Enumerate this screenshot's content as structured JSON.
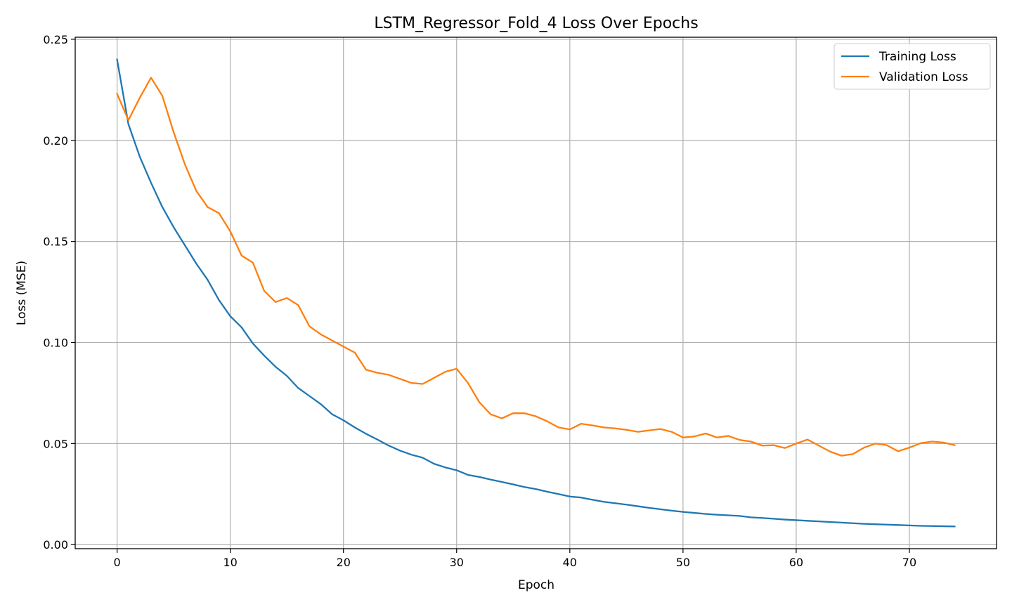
{
  "chart_data": {
    "type": "line",
    "title": "LSTM_Regressor_Fold_4 Loss Over Epochs",
    "xlabel": "Epoch",
    "ylabel": "Loss (MSE)",
    "xlim": [
      -3.7,
      77.7
    ],
    "ylim": [
      -0.002,
      0.251
    ],
    "xticks": [
      0,
      10,
      20,
      30,
      40,
      50,
      60,
      70
    ],
    "xtick_labels": [
      "0",
      "10",
      "20",
      "30",
      "40",
      "50",
      "60",
      "70"
    ],
    "yticks": [
      0.0,
      0.05,
      0.1,
      0.15,
      0.2,
      0.25
    ],
    "ytick_labels": [
      "0.00",
      "0.05",
      "0.10",
      "0.15",
      "0.20",
      "0.25"
    ],
    "grid": true,
    "legend_position": "top-right",
    "series": [
      {
        "name": "Training Loss",
        "color": "#1f77b4",
        "values": [
          0.24,
          0.208,
          0.192,
          0.179,
          0.167,
          0.157,
          0.148,
          0.139,
          0.131,
          0.121,
          0.113,
          0.1075,
          0.0995,
          0.0935,
          0.088,
          0.0835,
          0.0775,
          0.0735,
          0.0695,
          0.0645,
          0.0615,
          0.058,
          0.0548,
          0.052,
          0.049,
          0.0465,
          0.0445,
          0.043,
          0.04,
          0.0382,
          0.0368,
          0.0345,
          0.0335,
          0.0322,
          0.031,
          0.0298,
          0.0285,
          0.0275,
          0.0262,
          0.025,
          0.0238,
          0.0233,
          0.0222,
          0.0212,
          0.0205,
          0.0198,
          0.019,
          0.0182,
          0.0175,
          0.0168,
          0.0162,
          0.0157,
          0.0152,
          0.0148,
          0.0145,
          0.0142,
          0.0135,
          0.0132,
          0.0128,
          0.0124,
          0.0121,
          0.0118,
          0.0115,
          0.0112,
          0.0109,
          0.0106,
          0.0103,
          0.0101,
          0.0099,
          0.0097,
          0.0095,
          0.0093,
          0.0092,
          0.0091,
          0.009
        ]
      },
      {
        "name": "Validation Loss",
        "color": "#ff7f0e",
        "values": [
          0.223,
          0.21,
          0.221,
          0.231,
          0.222,
          0.204,
          0.188,
          0.175,
          0.167,
          0.164,
          0.155,
          0.143,
          0.1395,
          0.1255,
          0.12,
          0.122,
          0.1185,
          0.108,
          0.104,
          0.101,
          0.098,
          0.095,
          0.0865,
          0.085,
          0.084,
          0.082,
          0.08,
          0.0795,
          0.0825,
          0.0855,
          0.087,
          0.08,
          0.0705,
          0.0645,
          0.0625,
          0.065,
          0.065,
          0.0635,
          0.061,
          0.058,
          0.057,
          0.0598,
          0.059,
          0.058,
          0.0575,
          0.0568,
          0.0558,
          0.0565,
          0.0572,
          0.0558,
          0.053,
          0.0535,
          0.055,
          0.053,
          0.0538,
          0.0518,
          0.051,
          0.049,
          0.0492,
          0.0478,
          0.05,
          0.052,
          0.049,
          0.046,
          0.044,
          0.0448,
          0.048,
          0.05,
          0.0492,
          0.0462,
          0.048,
          0.0502,
          0.051,
          0.0505,
          0.0492
        ]
      }
    ]
  }
}
